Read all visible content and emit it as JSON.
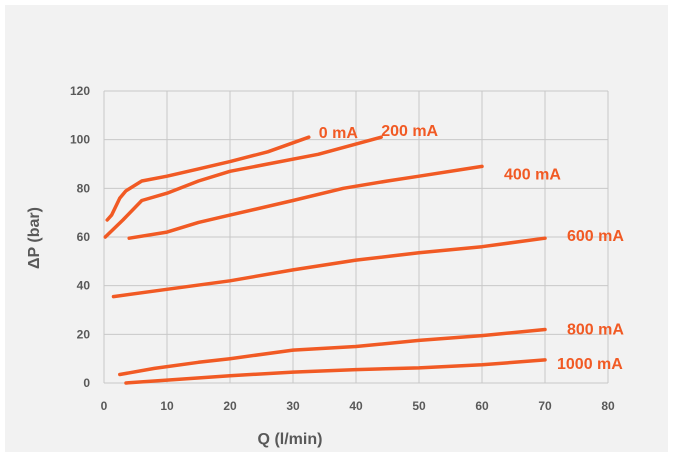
{
  "colors": {
    "background": "#f2f2f2",
    "grid": "#c8c8c8",
    "series": "#f15a24",
    "text": "#595959"
  },
  "chart_data": {
    "type": "line",
    "title": "",
    "xlabel": "Q (l/min)",
    "ylabel": "ΔP (bar)",
    "xlim": [
      0,
      80
    ],
    "ylim": [
      0,
      120
    ],
    "x_ticks": [
      "0",
      "10",
      "20",
      "30",
      "40",
      "50",
      "60",
      "70",
      "80"
    ],
    "y_ticks": [
      "0",
      "20",
      "40",
      "60",
      "80",
      "100",
      "120"
    ],
    "grid": true,
    "legend": "inline labels at line ends",
    "series": [
      {
        "name": "0 mA",
        "points": [
          [
            0.5,
            67
          ],
          [
            1.2,
            69
          ],
          [
            2.5,
            76
          ],
          [
            3.5,
            79
          ],
          [
            6,
            83
          ],
          [
            10,
            85
          ],
          [
            15,
            88
          ],
          [
            20,
            91
          ],
          [
            26,
            95
          ],
          [
            32.5,
            101
          ]
        ]
      },
      {
        "name": "200 mA",
        "points": [
          [
            0.2,
            60
          ],
          [
            3,
            67
          ],
          [
            6,
            75
          ],
          [
            10,
            78
          ],
          [
            15,
            83
          ],
          [
            20,
            87
          ],
          [
            26,
            90
          ],
          [
            34,
            94
          ],
          [
            44,
            101
          ]
        ]
      },
      {
        "name": "400 mA",
        "points": [
          [
            4,
            59.5
          ],
          [
            10,
            62
          ],
          [
            15,
            66
          ],
          [
            20,
            69
          ],
          [
            30,
            75
          ],
          [
            38,
            80
          ],
          [
            45,
            83
          ],
          [
            50,
            85
          ],
          [
            60,
            89
          ]
        ]
      },
      {
        "name": "600 mA",
        "points": [
          [
            1.5,
            35.5
          ],
          [
            10,
            38.5
          ],
          [
            20,
            42
          ],
          [
            30,
            46.5
          ],
          [
            40,
            50.5
          ],
          [
            50,
            53.5
          ],
          [
            60,
            56
          ],
          [
            70,
            59.5
          ]
        ]
      },
      {
        "name": "800 mA",
        "points": [
          [
            2.5,
            3.5
          ],
          [
            8,
            6
          ],
          [
            15,
            8.5
          ],
          [
            20,
            10
          ],
          [
            30,
            13.5
          ],
          [
            40,
            15
          ],
          [
            50,
            17.5
          ],
          [
            60,
            19.5
          ],
          [
            70,
            22
          ]
        ]
      },
      {
        "name": "1000 mA",
        "points": [
          [
            3.5,
            0
          ],
          [
            10,
            1.2
          ],
          [
            20,
            3
          ],
          [
            30,
            4.5
          ],
          [
            40,
            5.5
          ],
          [
            50,
            6.2
          ],
          [
            60,
            7.5
          ],
          [
            70,
            9.5
          ]
        ]
      }
    ]
  }
}
